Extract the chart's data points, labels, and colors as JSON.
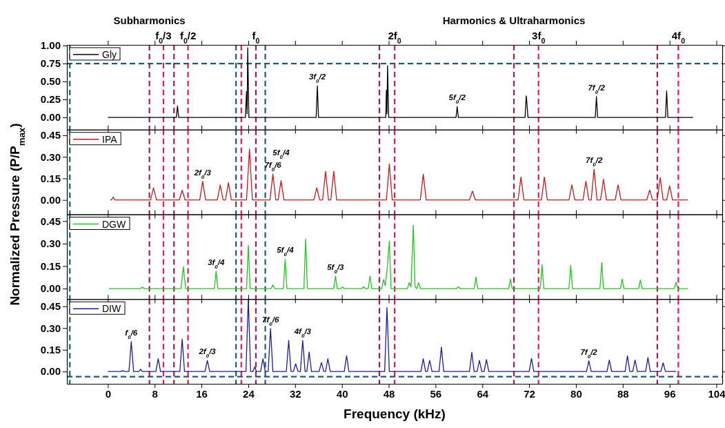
{
  "chart_data": [
    {
      "type": "line",
      "xlim": [
        -7,
        105
      ],
      "xticks": [
        0,
        8,
        16,
        24,
        32,
        40,
        48,
        56,
        64,
        72,
        80,
        88,
        96,
        104
      ],
      "ylim": [
        -0.17,
        1.01
      ],
      "yticks": [
        {
          "value": 1,
          "label": "1.00"
        },
        {
          "value": 0.75,
          "label": "0.75"
        },
        {
          "value": 0.5,
          "label": "0.50"
        },
        {
          "value": 0.25,
          "label": "0.25"
        },
        {
          "value": 0,
          "label": "0.00"
        }
      ],
      "tick_labels": "y",
      "legend": "top left",
      "line_style": "solid",
      "ylabel": "Normalized Pressure (P/P$_{max}$)",
      "series": [
        {
          "name": "Gly",
          "color": "#000000",
          "x": [
            0,
            11.7,
            11.9,
            12.1,
            23.5,
            23.7,
            23.8,
            23.9,
            24.1,
            35.6,
            35.8,
            36.0,
            47.5,
            47.6,
            47.7,
            47.8,
            48.0,
            59.5,
            59.7,
            59.9,
            71.3,
            71.5,
            71.6,
            71.8,
            83.3,
            83.5,
            83.7,
            95.3,
            95.5,
            95.7,
            100
          ],
          "values": [
            0,
            0,
            0.16,
            0,
            0,
            0.36,
            0.05,
            0.97,
            0,
            0,
            0.44,
            0,
            0,
            0.38,
            0.05,
            0.72,
            0,
            0,
            0.15,
            0,
            0,
            0.3,
            0.22,
            0,
            0,
            0.29,
            0,
            0,
            0.37,
            0,
            0
          ]
        }
      ],
      "ref_lines": [
        {
          "axis": "x",
          "value": 7.1,
          "color": "#a11c5c",
          "line_style": "dashed",
          "label": "Subharmonics"
        },
        {
          "axis": "x",
          "value": 9.5,
          "color": "#f0145a",
          "line_style": "dashed",
          "label": "f$_{0}$/3"
        },
        {
          "axis": "x",
          "value": 11.3,
          "color": "#a11c5c",
          "line_style": "dashed"
        },
        {
          "axis": "x",
          "value": 13.7,
          "color": "#f0145a",
          "line_style": "dashed",
          "label": "f$_{0}$/2"
        },
        {
          "axis": "x",
          "value": 22.8,
          "color": "#f0145a",
          "line_style": "dashed"
        },
        {
          "axis": "x",
          "value": 25.3,
          "color": "#a11c5c",
          "line_style": "dashed",
          "label": "f$_{0}$"
        },
        {
          "axis": "x",
          "value": 46.4,
          "color": "#a11c5c",
          "line_style": "dashed"
        },
        {
          "axis": "x",
          "value": 49.0,
          "color": "#f0145a",
          "line_style": "dashed",
          "label": "2f$_{0}$"
        },
        {
          "axis": "x",
          "value": 69.4,
          "color": "#a11c5c",
          "line_style": "dashed",
          "label": "Harmonics & Ultraharmonics"
        },
        {
          "axis": "x",
          "value": 73.6,
          "color": "#f0145a",
          "line_style": "dashed",
          "label": "3f$_{0}$"
        },
        {
          "axis": "x",
          "value": 93.9,
          "color": "#a11c5c",
          "line_style": "dashed"
        },
        {
          "axis": "x",
          "value": 97.5,
          "color": "#f0145a",
          "line_style": "dashed",
          "label": "4f$_{0}$"
        },
        {
          "axis": "x",
          "value": -6.5,
          "color": "#1b5f6e",
          "line_style": "dashed"
        },
        {
          "axis": "x",
          "value": 21.9,
          "color": "#1b5f6e",
          "line_style": "dashed"
        },
        {
          "axis": "x",
          "value": 26.9,
          "color": "#1b5f6e",
          "line_style": "dashed"
        },
        {
          "axis": "y",
          "value": 0.75,
          "color": "#1b5f6e",
          "line_style": "dashed"
        }
      ],
      "annotations": [
        {
          "text": "3f$_{0}$/2",
          "x": 35.8,
          "y": 0.44
        },
        {
          "text": "5f$_{0}$/2",
          "x": 59.7,
          "y": 0.15
        },
        {
          "text": "7f$_{0}$/2",
          "x": 83.5,
          "y": 0.29
        }
      ]
    },
    {
      "type": "line",
      "xlim": [
        -7,
        105
      ],
      "xticks": [
        0,
        8,
        16,
        24,
        32,
        40,
        48,
        56,
        64,
        72,
        80,
        88,
        96,
        104
      ],
      "ylim": [
        -0.1,
        0.49
      ],
      "yticks": [
        {
          "value": 0.45,
          "label": "0.45"
        },
        {
          "value": 0.3,
          "label": "0.30"
        },
        {
          "value": 0.15,
          "label": "0.15"
        },
        {
          "value": 0,
          "label": "0.00"
        }
      ],
      "tick_labels": "y",
      "legend": "top left",
      "line_style": "solid",
      "series": [
        {
          "name": "IPA",
          "color": "#c8181e",
          "x": [
            0.4,
            0.6,
            0.9,
            1.2,
            7.3,
            7.8,
            8.3,
            12.2,
            12.7,
            13.2,
            15.7,
            16.2,
            16.7,
            18.7,
            19.2,
            19.7,
            20.1,
            20.6,
            21.1,
            23.7,
            24.2,
            24.7,
            27.7,
            28.2,
            28.7,
            29.1,
            29.6,
            30.1,
            35.2,
            35.7,
            36.2,
            36.7,
            37.2,
            37.7,
            38.1,
            38.6,
            39.1,
            47.6,
            48.1,
            48.6,
            53.4,
            53.9,
            54.4,
            61.8,
            62.3,
            62.8,
            70.1,
            70.6,
            71.1,
            74.1,
            74.6,
            75.1,
            78.8,
            79.3,
            79.8,
            81.2,
            81.7,
            82.2,
            82.6,
            83.1,
            83.6,
            84.2,
            84.7,
            85.2,
            86.7,
            87.2,
            87.7,
            92.1,
            92.6,
            93.1,
            93.9,
            94.4,
            94.9,
            95.5,
            96.0,
            96.5,
            99.1
          ],
          "values": [
            0,
            0,
            0.02,
            0,
            0,
            0.084,
            0,
            0,
            0.068,
            0,
            0,
            0.13,
            0,
            0,
            0.105,
            0,
            0,
            0.12,
            0,
            0,
            0.355,
            0,
            0,
            0.18,
            0,
            0,
            0.135,
            0,
            0,
            0.084,
            0,
            0,
            0.2,
            0,
            0,
            0.2,
            0,
            0,
            0.25,
            0,
            0,
            0.18,
            0,
            0,
            0.062,
            0,
            0,
            0.16,
            0,
            0,
            0.16,
            0,
            0,
            0.105,
            0,
            0,
            0.13,
            0,
            0,
            0.214,
            0,
            0,
            0.144,
            0,
            0,
            0.105,
            0,
            0,
            0.07,
            0,
            0,
            0.157,
            0,
            0,
            0.098,
            0,
            0
          ]
        }
      ],
      "ref_lines": [
        {
          "axis": "x",
          "value": 7.1,
          "color": "#a11c5c",
          "line_style": "dashed"
        },
        {
          "axis": "x",
          "value": 9.5,
          "color": "#f0145a",
          "line_style": "dashed"
        },
        {
          "axis": "x",
          "value": 11.3,
          "color": "#a11c5c",
          "line_style": "dashed"
        },
        {
          "axis": "x",
          "value": 13.7,
          "color": "#f0145a",
          "line_style": "dashed"
        },
        {
          "axis": "x",
          "value": 22.8,
          "color": "#f0145a",
          "line_style": "dashed"
        },
        {
          "axis": "x",
          "value": 25.3,
          "color": "#a11c5c",
          "line_style": "dashed"
        },
        {
          "axis": "x",
          "value": 46.4,
          "color": "#a11c5c",
          "line_style": "dashed"
        },
        {
          "axis": "x",
          "value": 49.0,
          "color": "#f0145a",
          "line_style": "dashed"
        },
        {
          "axis": "x",
          "value": 69.4,
          "color": "#a11c5c",
          "line_style": "dashed"
        },
        {
          "axis": "x",
          "value": 73.6,
          "color": "#f0145a",
          "line_style": "dashed"
        },
        {
          "axis": "x",
          "value": 93.9,
          "color": "#a11c5c",
          "line_style": "dashed"
        },
        {
          "axis": "x",
          "value": 97.5,
          "color": "#f0145a",
          "line_style": "dashed"
        },
        {
          "axis": "x",
          "value": -6.5,
          "color": "#1b5f6e",
          "line_style": "dashed"
        },
        {
          "axis": "x",
          "value": 21.9,
          "color": "#1b5f6e",
          "line_style": "dashed"
        },
        {
          "axis": "x",
          "value": 26.9,
          "color": "#1b5f6e",
          "line_style": "dashed"
        }
      ],
      "annotations": [
        {
          "text": "2f$_{0}$/3",
          "x": 16.2,
          "y": 0.13
        },
        {
          "text": "7f$_{0}$/6",
          "x": 28.2,
          "y": 0.18
        },
        {
          "text": "5f$_{0}$/4",
          "x": 29.6,
          "y": 0.135
        },
        {
          "text": "7f$_{0}$/2",
          "x": 83.1,
          "y": 0.214
        }
      ]
    },
    {
      "type": "line",
      "xlim": [
        -7,
        105
      ],
      "xticks": [
        0,
        8,
        16,
        24,
        32,
        40,
        48,
        56,
        64,
        72,
        80,
        88,
        96,
        104
      ],
      "ylim": [
        -0.07,
        0.495
      ],
      "yticks": [
        {
          "value": 0.45,
          "label": "0.45"
        },
        {
          "value": 0.3,
          "label": "0.30"
        },
        {
          "value": 0.15,
          "label": "0.15"
        },
        {
          "value": 0,
          "label": "0.00"
        }
      ],
      "tick_labels": "y",
      "legend": "top left",
      "line_style": "solid",
      "series": [
        {
          "name": "DGW",
          "color": "#1ec81e",
          "x": [
            0.2,
            5.6,
            5.9,
            6.2,
            12.5,
            12.9,
            13.3,
            18.2,
            18.5,
            18.8,
            23.7,
            24.0,
            24.3,
            27.9,
            28.2,
            28.5,
            30.0,
            30.3,
            30.6,
            33.5,
            33.8,
            34.1,
            38.6,
            38.9,
            39.2,
            39.8,
            40.1,
            40.4,
            43.4,
            43.7,
            44.0,
            44.5,
            44.8,
            45.1,
            46.8,
            47.1,
            47.4,
            47.7,
            48.1,
            48.4,
            51.2,
            51.5,
            51.8,
            52.2,
            52.5,
            52.8,
            53.1,
            53.4,
            59.6,
            59.9,
            60.2,
            62.6,
            62.9,
            63.2,
            68.5,
            68.8,
            69.1,
            73.9,
            74.2,
            74.5,
            78.8,
            79.1,
            79.4,
            84.1,
            84.4,
            84.7,
            87.6,
            87.9,
            88.2,
            90.7,
            91.0,
            91.3,
            96.8,
            97.1,
            97.4,
            99.1
          ],
          "values": [
            0,
            0,
            0.01,
            0,
            0,
            0.146,
            0,
            0,
            0.116,
            0,
            0,
            0.29,
            0,
            0,
            0.024,
            0,
            0,
            0.197,
            0,
            0,
            0.33,
            0,
            0,
            0.083,
            0,
            0,
            0.01,
            0,
            0,
            0.012,
            0,
            0,
            0.083,
            0,
            0,
            0.06,
            0.02,
            0.12,
            0.316,
            0,
            0,
            0.04,
            0.01,
            0.423,
            0.01,
            0,
            0.04,
            0,
            0,
            0.012,
            0,
            0,
            0.077,
            0,
            0,
            0.063,
            0,
            0,
            0.16,
            0,
            0,
            0.155,
            0,
            0,
            0.173,
            0,
            0,
            0.063,
            0,
            0,
            0.057,
            0,
            0,
            0.042,
            0,
            0
          ]
        }
      ],
      "ref_lines": [
        {
          "axis": "x",
          "value": 7.1,
          "color": "#a11c5c",
          "line_style": "dashed"
        },
        {
          "axis": "x",
          "value": 9.5,
          "color": "#f0145a",
          "line_style": "dashed"
        },
        {
          "axis": "x",
          "value": 11.3,
          "color": "#a11c5c",
          "line_style": "dashed"
        },
        {
          "axis": "x",
          "value": 13.7,
          "color": "#f0145a",
          "line_style": "dashed"
        },
        {
          "axis": "x",
          "value": 22.8,
          "color": "#f0145a",
          "line_style": "dashed"
        },
        {
          "axis": "x",
          "value": 25.3,
          "color": "#a11c5c",
          "line_style": "dashed"
        },
        {
          "axis": "x",
          "value": 46.4,
          "color": "#a11c5c",
          "line_style": "dashed"
        },
        {
          "axis": "x",
          "value": 49.0,
          "color": "#f0145a",
          "line_style": "dashed"
        },
        {
          "axis": "x",
          "value": 69.4,
          "color": "#a11c5c",
          "line_style": "dashed"
        },
        {
          "axis": "x",
          "value": 73.6,
          "color": "#f0145a",
          "line_style": "dashed"
        },
        {
          "axis": "x",
          "value": 93.9,
          "color": "#a11c5c",
          "line_style": "dashed"
        },
        {
          "axis": "x",
          "value": 97.5,
          "color": "#f0145a",
          "line_style": "dashed"
        },
        {
          "axis": "x",
          "value": -6.5,
          "color": "#1b5f6e",
          "line_style": "dashed"
        },
        {
          "axis": "x",
          "value": 21.9,
          "color": "#1b5f6e",
          "line_style": "dashed"
        },
        {
          "axis": "x",
          "value": 26.9,
          "color": "#1b5f6e",
          "line_style": "dashed"
        }
      ],
      "annotations": [
        {
          "text": "3f$_{0}$/4",
          "x": 18.5,
          "y": 0.116
        },
        {
          "text": "5f$_{0}$/4",
          "x": 30.3,
          "y": 0.197
        },
        {
          "text": "5f$_{0}$/3",
          "x": 38.9,
          "y": 0.083
        }
      ]
    },
    {
      "type": "line",
      "xlim": [
        -7,
        105
      ],
      "xticks": [
        0,
        8,
        16,
        24,
        32,
        40,
        48,
        56,
        64,
        72,
        80,
        88,
        96,
        104
      ],
      "ylim": [
        -0.085,
        0.5
      ],
      "yticks": [
        {
          "value": 0.45,
          "label": "0.45"
        },
        {
          "value": 0.3,
          "label": "0.30"
        },
        {
          "value": 0.15,
          "label": "0.15"
        },
        {
          "value": 0,
          "label": "0.00"
        }
      ],
      "legend": "top left",
      "line_style": "solid",
      "xlabel": "Frequency (kHz)",
      "series": [
        {
          "name": "DIW",
          "color": "#1c1ca0",
          "x": [
            0,
            2.2,
            2.5,
            2.8,
            3.6,
            4.0,
            4.4,
            5.3,
            5.6,
            5.9,
            8.2,
            8.6,
            9.0,
            12.3,
            12.7,
            13.1,
            16.6,
            17.0,
            17.4,
            23.6,
            24.0,
            24.4,
            24.8,
            25.1,
            25.4,
            26.1,
            26.5,
            26.9,
            27.4,
            27.8,
            28.2,
            30.5,
            30.9,
            31.3,
            31.7,
            32.1,
            32.5,
            32.9,
            33.3,
            33.7,
            34.0,
            34.4,
            34.8,
            36.1,
            36.5,
            36.9,
            37.2,
            37.6,
            38.0,
            40.4,
            40.8,
            41.2,
            47.3,
            47.7,
            48.1,
            53.5,
            53.9,
            54.3,
            54.6,
            55.0,
            55.4,
            56.6,
            57.0,
            57.4,
            61.8,
            62.2,
            62.6,
            63.1,
            63.5,
            63.9,
            64.3,
            64.7,
            65.1,
            72.0,
            72.4,
            72.8,
            81.8,
            82.2,
            82.6,
            85.3,
            85.7,
            86.1,
            88.4,
            88.8,
            89.2,
            89.7,
            90.1,
            90.5,
            91.9,
            92.3,
            92.7,
            94.5,
            94.9,
            95.3,
            97.1
          ],
          "values": [
            0,
            0,
            0.006,
            0,
            0,
            0.206,
            0,
            0,
            0.015,
            0,
            0,
            0.088,
            0,
            0,
            0.223,
            0,
            0,
            0.076,
            0,
            0,
            0.5,
            0,
            0,
            0.032,
            0,
            0,
            0.088,
            0,
            0,
            0.297,
            0,
            0,
            0.215,
            0,
            0,
            0.053,
            0,
            0,
            0.215,
            0,
            0,
            0.135,
            0,
            0,
            0.062,
            0,
            0,
            0.088,
            0,
            0,
            0.109,
            0,
            0,
            0.441,
            0,
            0,
            0.088,
            0,
            0,
            0.076,
            0,
            0,
            0.168,
            0,
            0,
            0.132,
            0,
            0,
            0.076,
            0,
            0,
            0.082,
            0,
            0,
            0.091,
            0,
            0,
            0.074,
            0,
            0,
            0.079,
            0,
            0,
            0.109,
            0,
            0,
            0.079,
            0,
            0,
            0.097,
            0,
            0,
            0.059,
            0,
            0
          ]
        }
      ],
      "ref_lines": [
        {
          "axis": "x",
          "value": 7.1,
          "color": "#a11c5c",
          "line_style": "dashed"
        },
        {
          "axis": "x",
          "value": 9.5,
          "color": "#f0145a",
          "line_style": "dashed"
        },
        {
          "axis": "x",
          "value": 11.3,
          "color": "#a11c5c",
          "line_style": "dashed"
        },
        {
          "axis": "x",
          "value": 13.7,
          "color": "#f0145a",
          "line_style": "dashed"
        },
        {
          "axis": "x",
          "value": 22.8,
          "color": "#f0145a",
          "line_style": "dashed"
        },
        {
          "axis": "x",
          "value": 25.3,
          "color": "#a11c5c",
          "line_style": "dashed"
        },
        {
          "axis": "x",
          "value": 46.4,
          "color": "#a11c5c",
          "line_style": "dashed"
        },
        {
          "axis": "x",
          "value": 49.0,
          "color": "#f0145a",
          "line_style": "dashed"
        },
        {
          "axis": "x",
          "value": 69.4,
          "color": "#a11c5c",
          "line_style": "dashed"
        },
        {
          "axis": "x",
          "value": 73.6,
          "color": "#f0145a",
          "line_style": "dashed"
        },
        {
          "axis": "x",
          "value": 93.9,
          "color": "#a11c5c",
          "line_style": "dashed"
        },
        {
          "axis": "x",
          "value": 97.5,
          "color": "#f0145a",
          "line_style": "dashed"
        },
        {
          "axis": "x",
          "value": -6.5,
          "color": "#1b5f6e",
          "line_style": "dashed"
        },
        {
          "axis": "x",
          "value": 21.9,
          "color": "#1b5f6e",
          "line_style": "dashed"
        },
        {
          "axis": "x",
          "value": 26.9,
          "color": "#1b5f6e",
          "line_style": "dashed"
        },
        {
          "axis": "y",
          "value": -0.036,
          "color": "#1b5f6e",
          "line_style": "dashed"
        }
      ],
      "annotations": [
        {
          "text": "f$_{0}$/6",
          "x": 4.0,
          "y": 0.206
        },
        {
          "text": "2f$_{0}$/3",
          "x": 17.0,
          "y": 0.076
        },
        {
          "text": "7f$_{0}$/6",
          "x": 27.8,
          "y": 0.297
        },
        {
          "text": "4f$_{0}$/3",
          "x": 33.3,
          "y": 0.215
        },
        {
          "text": "7f$_{0}$/2",
          "x": 82.2,
          "y": 0.074
        }
      ]
    }
  ]
}
